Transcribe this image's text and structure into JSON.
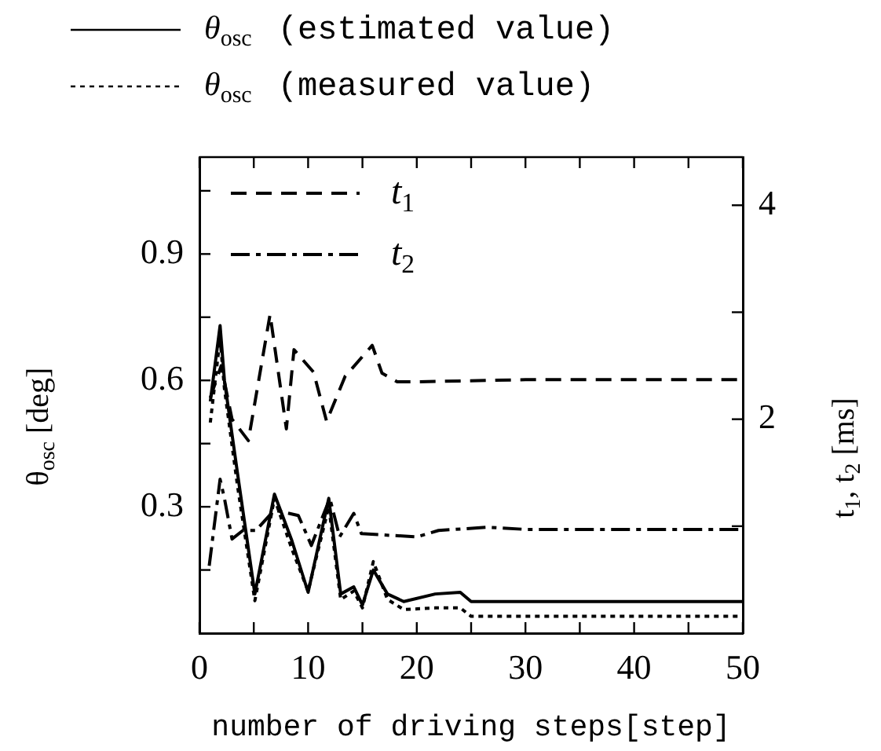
{
  "chart_data": {
    "type": "line",
    "xlabel": "number of driving steps[step]",
    "ylabel": "θ$_{osc}$ [deg]",
    "y2label": "t$_{1}$, t$_{2}$ [ms]",
    "xlim": [
      0,
      50
    ],
    "xticks": [
      0,
      {
        "value": 5,
        "label": null
      },
      10,
      {
        "value": 15,
        "label": null
      },
      20,
      {
        "value": 25,
        "label": null
      },
      30,
      {
        "value": 35,
        "label": null
      },
      40,
      {
        "value": 45,
        "label": null
      },
      50
    ],
    "ylim": [
      0,
      1.13
    ],
    "yticks": [
      {
        "value": 0.15,
        "label": null
      },
      0.3,
      {
        "value": 0.45,
        "label": null
      },
      0.6,
      {
        "value": 0.75,
        "label": null
      },
      0.9,
      {
        "value": 1.05,
        "label": null
      }
    ],
    "y2lim": [
      0,
      4.45
    ],
    "y2ticks": [
      {
        "value": 1,
        "label": null
      },
      2,
      {
        "value": 3,
        "label": null
      },
      4
    ],
    "legend": "top",
    "grid": false,
    "marker": "none",
    "series": [
      {
        "name": "θ$_{osc}$ (estimated value)",
        "color": "#000000",
        "line_style": "solid",
        "x": [
          1,
          1.9,
          2.3,
          3.5,
          5.1,
          6.9,
          8.5,
          10,
          11.9,
          13,
          14.2,
          15,
          16,
          17.3,
          18.8,
          21.7,
          24,
          25,
          30,
          40,
          50
        ],
        "values": [
          0.55,
          0.73,
          0.6,
          0.38,
          0.093,
          0.33,
          0.22,
          0.097,
          0.32,
          0.093,
          0.11,
          0.067,
          0.15,
          0.093,
          0.075,
          0.093,
          0.097,
          0.075,
          0.075,
          0.075,
          0.075
        ]
      },
      {
        "name": "θ$_{osc}$ (measured value)",
        "color": "#000000",
        "line_style": "dotted",
        "x": [
          1,
          1.9,
          2.3,
          3.5,
          5.1,
          6.9,
          8.5,
          10,
          11.9,
          13,
          14.2,
          15,
          16,
          17.3,
          18.8,
          21.7,
          24,
          25,
          30,
          40,
          50
        ],
        "values": [
          0.5,
          0.7,
          0.58,
          0.35,
          0.077,
          0.32,
          0.2,
          0.1,
          0.3,
          0.08,
          0.1,
          0.06,
          0.17,
          0.08,
          0.056,
          0.06,
          0.06,
          0.04,
          0.04,
          0.04,
          0.04
        ]
      },
      {
        "name": "t$_{1}$",
        "color": "#000000",
        "line_style": "dashed",
        "axis": "y2",
        "x": [
          1,
          2,
          3,
          4.5,
          6.5,
          8,
          8.7,
          10.5,
          11.7,
          13.4,
          15.9,
          16.8,
          18.2,
          20.2,
          30,
          40,
          50
        ],
        "values": [
          2.2,
          2.5,
          2.0,
          1.8,
          2.98,
          1.91,
          2.65,
          2.44,
          1.98,
          2.4,
          2.69,
          2.43,
          2.35,
          2.35,
          2.37,
          2.37,
          2.37
        ]
      },
      {
        "name": "t$_{2}$",
        "color": "#000000",
        "line_style": "dashdot",
        "axis": "y2",
        "x": [
          0.9,
          1.9,
          2.3,
          3,
          4,
          5.2,
          6.9,
          9.1,
          10.3,
          12,
          12.9,
          14.2,
          14.9,
          20,
          22,
          26.5,
          30,
          40,
          50
        ],
        "values": [
          0.63,
          1.44,
          1.26,
          0.88,
          0.96,
          0.96,
          1.15,
          1.1,
          0.82,
          1.26,
          0.9,
          1.12,
          0.93,
          0.9,
          0.96,
          0.99,
          0.97,
          0.97,
          0.97
        ]
      }
    ]
  }
}
